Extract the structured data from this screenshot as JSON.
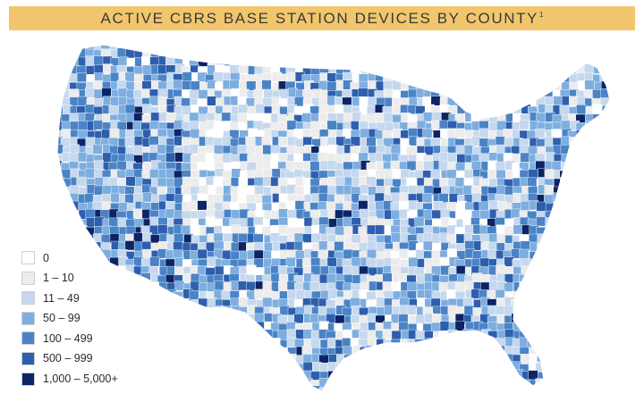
{
  "title": {
    "text": "ACTIVE CBRS BASE STATION DEVICES BY COUNTY",
    "footnote_mark": "1",
    "background": "#f2c66d"
  },
  "legend": {
    "items": [
      {
        "label": "0",
        "color": "#ffffff"
      },
      {
        "label": "1 – 10",
        "color": "#ececec"
      },
      {
        "label": "11 – 49",
        "color": "#c5d8ee"
      },
      {
        "label": "50 – 99",
        "color": "#7eaee0"
      },
      {
        "label": "100 – 499",
        "color": "#4a84c6"
      },
      {
        "label": "500 – 999",
        "color": "#2e5fae"
      },
      {
        "label": "1,000 – 5,000+",
        "color": "#0c2466"
      }
    ]
  }
}
